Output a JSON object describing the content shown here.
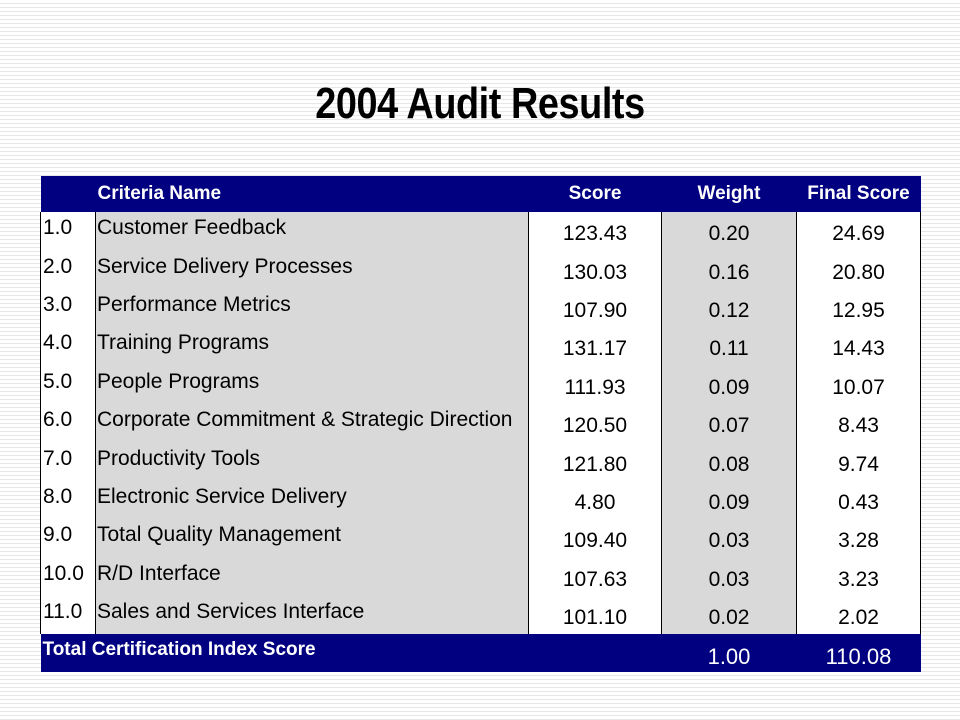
{
  "slide": {
    "title": "2004 Audit Results"
  },
  "table": {
    "headers": {
      "number": "",
      "criteria_name": "Criteria Name",
      "score": "Score",
      "weight": "Weight",
      "final_score": "Final Score"
    },
    "rows": [
      {
        "number": "1.0",
        "name": "Customer Feedback",
        "score": "123.43",
        "weight": "0.20",
        "final_score": "24.69"
      },
      {
        "number": "2.0",
        "name": "Service Delivery Processes",
        "score": "130.03",
        "weight": "0.16",
        "final_score": "20.80"
      },
      {
        "number": "3.0",
        "name": "Performance Metrics",
        "score": "107.90",
        "weight": "0.12",
        "final_score": "12.95"
      },
      {
        "number": "4.0",
        "name": "Training Programs",
        "score": "131.17",
        "weight": "0.11",
        "final_score": "14.43"
      },
      {
        "number": "5.0",
        "name": "People Programs",
        "score": "111.93",
        "weight": "0.09",
        "final_score": "10.07"
      },
      {
        "number": "6.0",
        "name": "Corporate Commitment & Strategic Direction",
        "score": "120.50",
        "weight": "0.07",
        "final_score": "8.43"
      },
      {
        "number": "7.0",
        "name": "Productivity Tools",
        "score": "121.80",
        "weight": "0.08",
        "final_score": "9.74"
      },
      {
        "number": "8.0",
        "name": "Electronic Service Delivery",
        "score": "4.80",
        "weight": "0.09",
        "final_score": "0.43"
      },
      {
        "number": "9.0",
        "name": "Total Quality Management",
        "score": "109.40",
        "weight": "0.03",
        "final_score": "3.28"
      },
      {
        "number": "10.0",
        "name": "R/D Interface",
        "score": "107.63",
        "weight": "0.03",
        "final_score": "3.23"
      },
      {
        "number": "11.0",
        "name": "Sales and Services Interface",
        "score": "101.10",
        "weight": "0.02",
        "final_score": "2.02"
      }
    ],
    "footer": {
      "label": "Total Certification Index Score",
      "weight_total": "1.00",
      "final_total": "110.08"
    }
  },
  "colors": {
    "header_bg": "#000080",
    "shaded_cell": "#d9d9d9",
    "header_text": "#ffffff"
  }
}
